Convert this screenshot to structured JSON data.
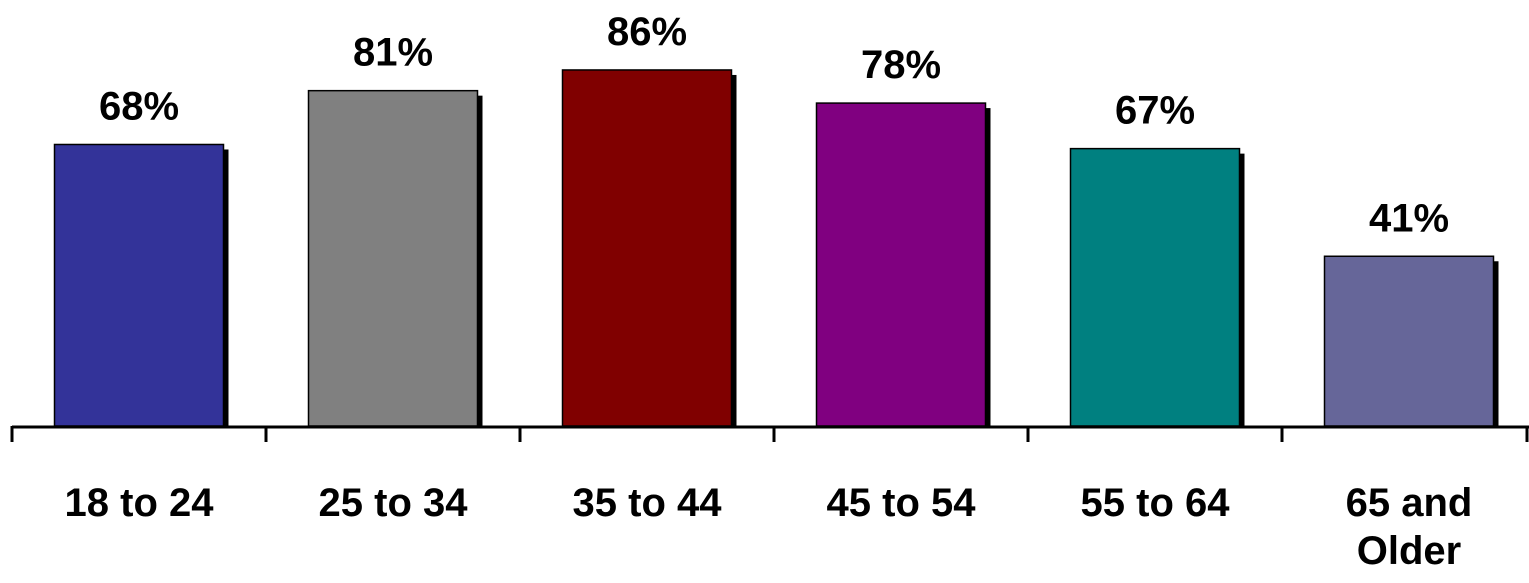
{
  "chart_data": {
    "type": "bar",
    "categories": [
      "18 to 24",
      "25 to 34",
      "35 to 44",
      "45 to 54",
      "55 to 64",
      "65 and Older"
    ],
    "values": [
      68,
      81,
      86,
      78,
      67,
      41
    ],
    "value_labels": [
      "68%",
      "81%",
      "86%",
      "78%",
      "67%",
      "41%"
    ],
    "unit": "%",
    "colors": [
      "#333399",
      "#808080",
      "#800000",
      "#800080",
      "#008080",
      "#666699"
    ],
    "title": "",
    "xlabel": "",
    "ylabel": "",
    "ylim": [
      0,
      100
    ],
    "grid": false,
    "legend": "none"
  }
}
